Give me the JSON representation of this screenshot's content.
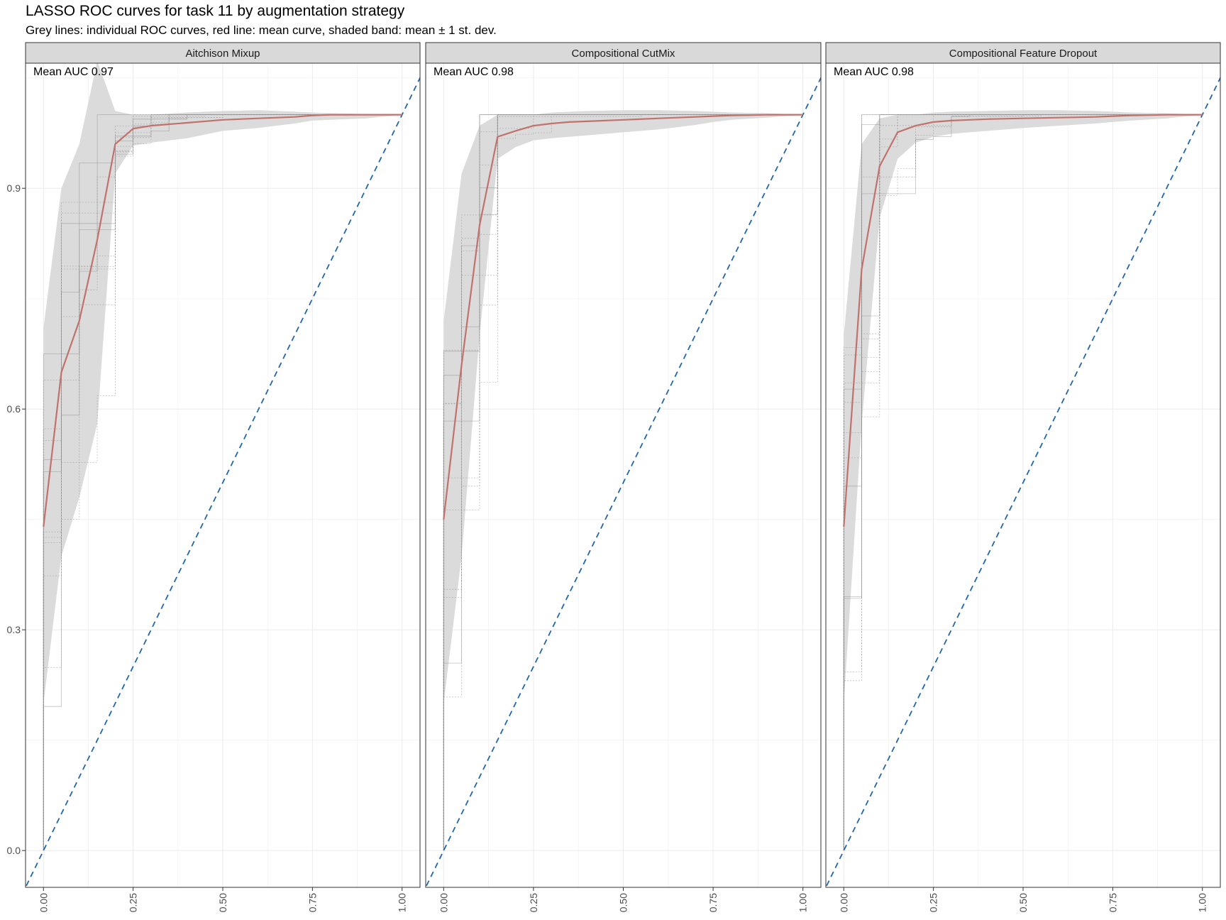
{
  "title": "LASSO ROC curves for task 11 by augmentation strategy",
  "subtitle": "Grey lines: individual ROC curves, red line: mean curve, shaded band: mean ± 1 st. dev.",
  "colors": {
    "mean_curve": "#c0726d",
    "band": "#d9d9d9",
    "individual": "#8c8c8c",
    "diagonal": "#2166ac",
    "strip_fill": "#d9d9d9",
    "grid": "#ebebeb"
  },
  "chart_data": [
    {
      "type": "line",
      "facet": "Aitchison Mixup",
      "annotation": "Mean AUC 0.97",
      "x_ticks": [
        "0.00",
        "0.25",
        "0.50",
        "0.75",
        "1.00"
      ],
      "y_ticks": [
        "0.0",
        "0.3",
        "0.6",
        "0.9"
      ],
      "xlim": [
        -0.05,
        1.05
      ],
      "ylim": [
        -0.05,
        1.07
      ],
      "grid": true,
      "mean_curve": {
        "x": [
          0,
          0.05,
          0.1,
          0.15,
          0.2,
          0.25,
          0.3,
          0.35,
          0.4,
          0.5,
          0.6,
          0.7,
          0.75,
          0.8,
          0.9,
          1.0
        ],
        "y": [
          0.44,
          0.65,
          0.72,
          0.83,
          0.96,
          0.981,
          0.985,
          0.987,
          0.989,
          0.993,
          0.995,
          0.997,
          0.999,
          1.0,
          1.0,
          1.0
        ]
      },
      "band": {
        "x": [
          0,
          0.05,
          0.1,
          0.15,
          0.2,
          0.25,
          0.3,
          0.4,
          0.5,
          0.6,
          0.7,
          0.75,
          0.8,
          0.9,
          1.0
        ],
        "lower": [
          0.2,
          0.4,
          0.48,
          0.58,
          0.92,
          0.958,
          0.962,
          0.968,
          0.978,
          0.982,
          0.988,
          0.992,
          0.993,
          0.995,
          1.0
        ],
        "upper": [
          0.71,
          0.9,
          0.96,
          1.073,
          1.005,
          1.0,
          1.0,
          1.003,
          1.005,
          1.006,
          1.004,
          1.003,
          1.002,
          1.001,
          1.0
        ]
      },
      "reference_line": {
        "from": [
          0,
          0
        ],
        "to": [
          1,
          1
        ]
      }
    },
    {
      "type": "line",
      "facet": "Compositional CutMix",
      "annotation": "Mean AUC 0.98",
      "x_ticks": [
        "0.00",
        "0.25",
        "0.50",
        "0.75",
        "1.00"
      ],
      "y_ticks": [
        "0.0",
        "0.3",
        "0.6",
        "0.9"
      ],
      "xlim": [
        -0.05,
        1.05
      ],
      "ylim": [
        -0.05,
        1.07
      ],
      "grid": true,
      "mean_curve": {
        "x": [
          0,
          0.05,
          0.1,
          0.15,
          0.2,
          0.25,
          0.3,
          0.35,
          0.4,
          0.5,
          0.6,
          0.7,
          0.75,
          0.8,
          0.9,
          1.0
        ],
        "y": [
          0.45,
          0.66,
          0.85,
          0.97,
          0.978,
          0.985,
          0.988,
          0.99,
          0.991,
          0.993,
          0.995,
          0.997,
          0.998,
          0.999,
          1.0,
          1.0
        ]
      },
      "band": {
        "x": [
          0,
          0.05,
          0.1,
          0.15,
          0.2,
          0.25,
          0.3,
          0.4,
          0.5,
          0.6,
          0.7,
          0.75,
          0.8,
          0.9,
          1.0
        ],
        "lower": [
          0.2,
          0.4,
          0.7,
          0.94,
          0.956,
          0.965,
          0.968,
          0.972,
          0.976,
          0.98,
          0.986,
          0.99,
          0.993,
          0.996,
          1.0
        ],
        "upper": [
          0.72,
          0.92,
          0.985,
          1.0,
          1.0,
          1.0,
          1.003,
          1.005,
          1.006,
          1.006,
          1.005,
          1.004,
          1.003,
          1.002,
          1.0
        ]
      },
      "reference_line": {
        "from": [
          0,
          0
        ],
        "to": [
          1,
          1
        ]
      }
    },
    {
      "type": "line",
      "facet": "Compositional Feature Dropout",
      "annotation": "Mean AUC 0.98",
      "x_ticks": [
        "0.00",
        "0.25",
        "0.50",
        "0.75",
        "1.00"
      ],
      "y_ticks": [
        "0.0",
        "0.3",
        "0.6",
        "0.9"
      ],
      "xlim": [
        -0.05,
        1.05
      ],
      "ylim": [
        -0.05,
        1.07
      ],
      "grid": true,
      "mean_curve": {
        "x": [
          0,
          0.03,
          0.05,
          0.1,
          0.15,
          0.2,
          0.25,
          0.3,
          0.35,
          0.4,
          0.5,
          0.6,
          0.7,
          0.75,
          0.8,
          0.9,
          1.0
        ],
        "y": [
          0.44,
          0.65,
          0.79,
          0.93,
          0.976,
          0.985,
          0.99,
          0.992,
          0.993,
          0.994,
          0.995,
          0.996,
          0.997,
          0.998,
          0.999,
          1.0,
          1.0
        ]
      },
      "band": {
        "x": [
          0,
          0.05,
          0.1,
          0.15,
          0.2,
          0.25,
          0.3,
          0.4,
          0.5,
          0.6,
          0.7,
          0.75,
          0.8,
          0.9,
          1.0
        ],
        "lower": [
          0.2,
          0.58,
          0.86,
          0.94,
          0.962,
          0.97,
          0.974,
          0.978,
          0.982,
          0.985,
          0.988,
          0.99,
          0.992,
          0.995,
          1.0
        ],
        "upper": [
          0.7,
          0.96,
          0.995,
          1.0,
          1.0,
          1.003,
          1.004,
          1.005,
          1.006,
          1.006,
          1.005,
          1.004,
          1.003,
          1.002,
          1.0
        ]
      },
      "reference_line": {
        "from": [
          0,
          0
        ],
        "to": [
          1,
          1
        ]
      }
    }
  ]
}
